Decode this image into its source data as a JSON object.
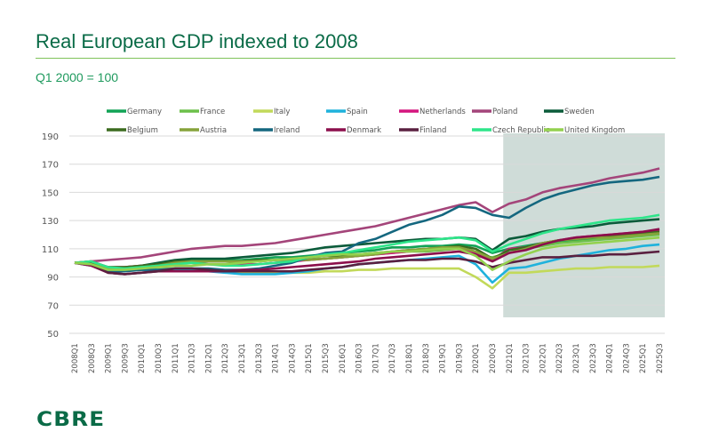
{
  "header": {
    "title": "Real European GDP indexed to 2008",
    "subtitle": "Q1 2000 = 100"
  },
  "brand": {
    "logo_text": "CBRE",
    "color": "#0a6b47"
  },
  "chart_data": {
    "type": "line",
    "title": "Real European GDP indexed to 2008",
    "subtitle": "Q1 2000 = 100",
    "xlabel": "",
    "ylabel": "",
    "ylim": [
      50,
      190
    ],
    "yticks": [
      50,
      70,
      90,
      110,
      130,
      150,
      170,
      190
    ],
    "grid": true,
    "legend_position": "top",
    "forecast_shading": {
      "from": "2021Q1",
      "to": "2025Q4",
      "color": "#cfdcd8"
    },
    "x": [
      "2008Q1",
      "2008Q3",
      "2009Q1",
      "2009Q3",
      "2010Q1",
      "2010Q3",
      "2011Q1",
      "2011Q3",
      "2012Q1",
      "2012Q3",
      "2013Q1",
      "2013Q3",
      "2014Q1",
      "2014Q3",
      "2015Q1",
      "2015Q3",
      "2016Q1",
      "2016Q3",
      "2017Q1",
      "2017Q3",
      "2018Q1",
      "2018Q3",
      "2019Q1",
      "2019Q3",
      "2020Q1",
      "2020Q3",
      "2021Q1",
      "2021Q3",
      "2022Q1",
      "2022Q3",
      "2023Q1",
      "2023Q3",
      "2024Q1",
      "2024Q3",
      "2025Q1",
      "2025Q3"
    ],
    "series": [
      {
        "name": "Germany",
        "color": "#12a356",
        "values": [
          100,
          100,
          95,
          96,
          97,
          99,
          101,
          102,
          102,
          102,
          102,
          103,
          104,
          104,
          105,
          106,
          107,
          108,
          109,
          111,
          111,
          112,
          112,
          113,
          112,
          107,
          110,
          112,
          114,
          115,
          116,
          117,
          118,
          119,
          120,
          121
        ]
      },
      {
        "name": "France",
        "color": "#6cc04a",
        "values": [
          100,
          100,
          97,
          97,
          98,
          99,
          100,
          101,
          101,
          101,
          101,
          101,
          102,
          102,
          103,
          103,
          104,
          105,
          106,
          107,
          108,
          108,
          109,
          110,
          105,
          104,
          107,
          110,
          112,
          114,
          115,
          116,
          117,
          118,
          119,
          120
        ]
      },
      {
        "name": "Italy",
        "color": "#c2d95a",
        "values": [
          100,
          99,
          95,
          95,
          95,
          96,
          96,
          96,
          95,
          94,
          93,
          93,
          93,
          93,
          93,
          94,
          94,
          95,
          95,
          96,
          96,
          96,
          96,
          96,
          90,
          82,
          93,
          93,
          94,
          95,
          96,
          96,
          97,
          97,
          97,
          98
        ]
      },
      {
        "name": "Spain",
        "color": "#1fb2dc",
        "values": [
          100,
          100,
          96,
          95,
          95,
          95,
          95,
          95,
          94,
          93,
          92,
          92,
          92,
          93,
          94,
          96,
          97,
          99,
          100,
          101,
          102,
          103,
          104,
          105,
          99,
          86,
          96,
          97,
          100,
          103,
          105,
          107,
          109,
          110,
          112,
          113
        ]
      },
      {
        "name": "Netherlands",
        "color": "#d4157e",
        "values": [
          100,
          101,
          97,
          97,
          98,
          99,
          100,
          100,
          99,
          99,
          99,
          99,
          100,
          101,
          102,
          103,
          104,
          105,
          106,
          107,
          108,
          109,
          110,
          110,
          107,
          102,
          110,
          111,
          114,
          116,
          118,
          119,
          120,
          121,
          122,
          123
        ]
      },
      {
        "name": "Poland",
        "color": "#a4457a",
        "values": [
          100,
          101,
          102,
          103,
          104,
          106,
          108,
          110,
          111,
          112,
          112,
          113,
          114,
          116,
          118,
          120,
          122,
          124,
          126,
          129,
          132,
          135,
          138,
          141,
          143,
          136,
          142,
          145,
          150,
          153,
          155,
          157,
          160,
          162,
          164,
          167
        ]
      },
      {
        "name": "Sweden",
        "color": "#0b5b3a",
        "values": [
          100,
          99,
          94,
          95,
          98,
          100,
          102,
          103,
          103,
          103,
          104,
          105,
          106,
          107,
          109,
          111,
          112,
          113,
          114,
          115,
          116,
          117,
          117,
          118,
          117,
          109,
          117,
          119,
          122,
          124,
          125,
          126,
          128,
          129,
          130,
          131
        ]
      },
      {
        "name": "Belgium",
        "color": "#3b6b1f",
        "values": [
          100,
          100,
          97,
          97,
          98,
          99,
          101,
          101,
          101,
          101,
          101,
          102,
          102,
          103,
          104,
          105,
          105,
          106,
          107,
          108,
          109,
          110,
          111,
          112,
          110,
          103,
          109,
          111,
          114,
          116,
          117,
          118,
          119,
          120,
          121,
          122
        ]
      },
      {
        "name": "Austria",
        "color": "#86a33a",
        "values": [
          100,
          101,
          96,
          96,
          97,
          98,
          100,
          101,
          101,
          101,
          101,
          101,
          102,
          102,
          102,
          103,
          104,
          105,
          106,
          108,
          109,
          110,
          111,
          111,
          108,
          103,
          107,
          110,
          114,
          116,
          117,
          118,
          118,
          119,
          120,
          121
        ]
      },
      {
        "name": "Ireland",
        "color": "#14677f",
        "values": [
          100,
          98,
          94,
          94,
          95,
          95,
          96,
          96,
          96,
          95,
          95,
          96,
          98,
          100,
          104,
          107,
          108,
          114,
          117,
          122,
          127,
          130,
          134,
          140,
          139,
          134,
          132,
          139,
          145,
          149,
          152,
          155,
          157,
          158,
          159,
          161
        ]
      },
      {
        "name": "Denmark",
        "color": "#8c0f4c",
        "values": [
          100,
          98,
          93,
          92,
          93,
          94,
          94,
          94,
          94,
          94,
          95,
          95,
          96,
          97,
          98,
          99,
          100,
          101,
          103,
          104,
          105,
          106,
          107,
          108,
          106,
          101,
          107,
          109,
          113,
          116,
          118,
          119,
          120,
          121,
          122,
          124
        ]
      },
      {
        "name": "Finland",
        "color": "#5a2040",
        "values": [
          100,
          99,
          93,
          92,
          93,
          94,
          96,
          96,
          95,
          94,
          94,
          94,
          94,
          94,
          95,
          96,
          97,
          99,
          100,
          101,
          102,
          102,
          103,
          103,
          101,
          97,
          100,
          102,
          104,
          104,
          105,
          105,
          106,
          106,
          107,
          108
        ]
      },
      {
        "name": "Czech Republic",
        "color": "#2ee58a",
        "values": [
          100,
          101,
          97,
          96,
          97,
          98,
          99,
          100,
          99,
          98,
          98,
          99,
          100,
          101,
          104,
          106,
          107,
          109,
          111,
          113,
          115,
          116,
          117,
          118,
          116,
          108,
          113,
          117,
          121,
          124,
          126,
          128,
          130,
          131,
          132,
          134
        ]
      },
      {
        "name": "United Kingdom",
        "color": "#93d14e",
        "values": [
          100,
          99,
          95,
          95,
          96,
          97,
          98,
          98,
          99,
          99,
          100,
          101,
          102,
          103,
          104,
          105,
          106,
          106,
          107,
          108,
          108,
          109,
          110,
          110,
          105,
          95,
          101,
          106,
          110,
          112,
          113,
          114,
          115,
          116,
          117,
          118
        ]
      }
    ]
  }
}
